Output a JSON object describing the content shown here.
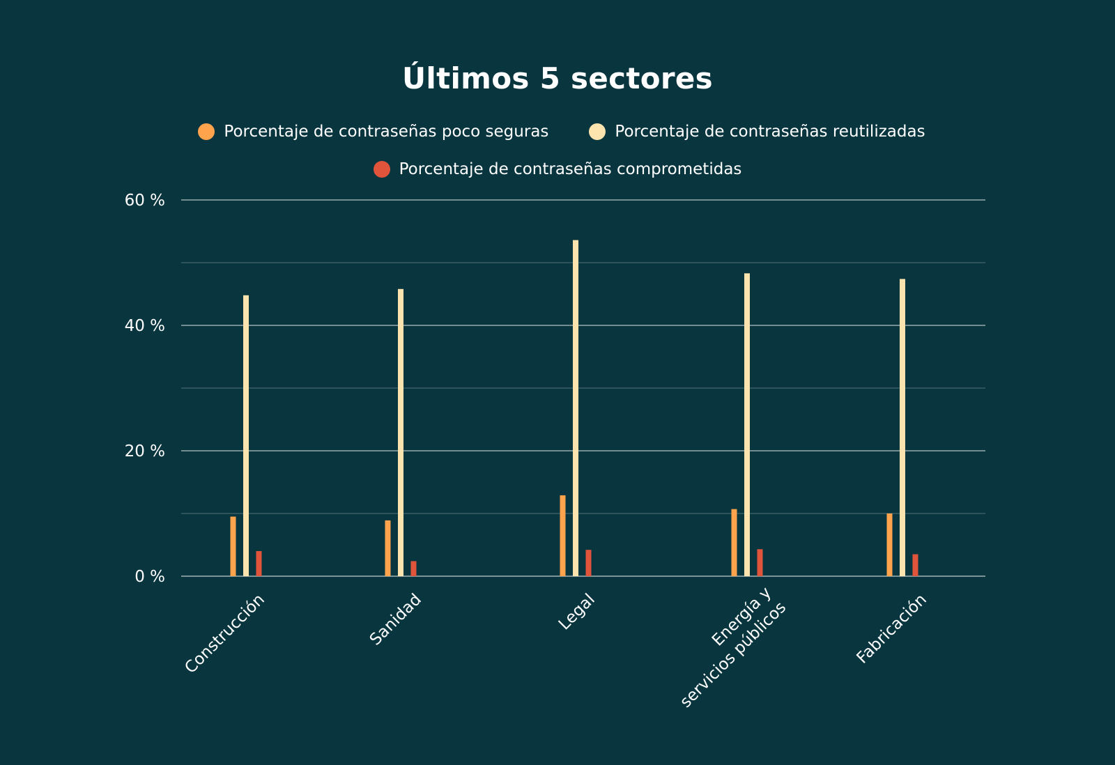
{
  "chart_data": {
    "type": "bar",
    "title": "Últimos 5 sectores",
    "categories": [
      [
        "Construcción"
      ],
      [
        "Sanidad"
      ],
      [
        "Legal"
      ],
      [
        "Energía y",
        "servicios públicos"
      ],
      [
        "Fabricación"
      ]
    ],
    "series": [
      {
        "name": "Porcentaje de contraseñas poco seguras",
        "color": "#ffa34d",
        "values": [
          9.5,
          8.9,
          12.9,
          10.7,
          10.0
        ]
      },
      {
        "name": "Porcentaje de contraseñas reutilizadas",
        "color": "#fde3ae",
        "values": [
          44.8,
          45.8,
          53.6,
          48.3,
          47.4
        ]
      },
      {
        "name": "Porcentaje de contraseñas comprometidas",
        "color": "#e0543c",
        "values": [
          4.0,
          2.4,
          4.2,
          4.3,
          3.5
        ]
      }
    ],
    "ylim": [
      0,
      60
    ],
    "yticks": [
      0,
      20,
      40,
      60
    ],
    "ytick_labels": [
      "0 %",
      "20 %",
      "40 %",
      "60 %"
    ],
    "minor_gridlines": [
      10,
      30,
      50
    ],
    "xlabel": "",
    "ylabel": "",
    "legend": "top-center"
  }
}
